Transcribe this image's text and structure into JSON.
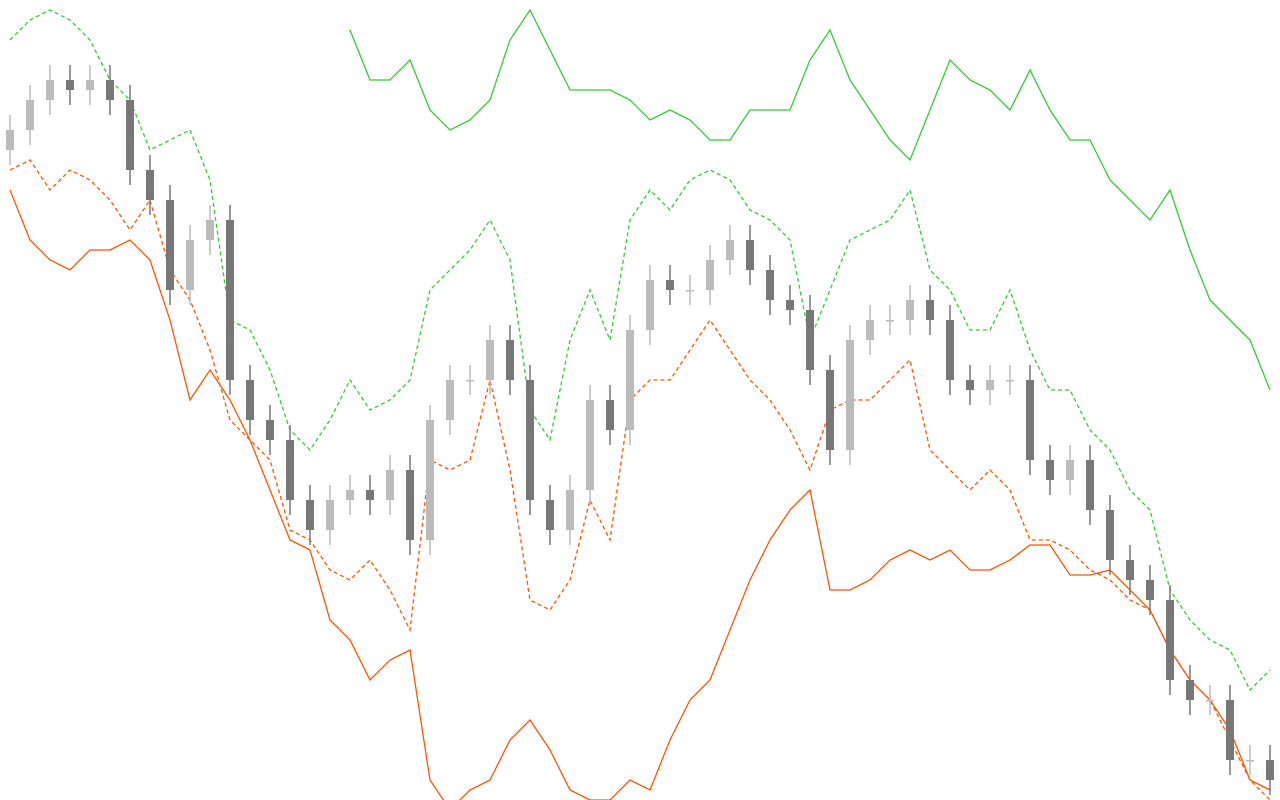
{
  "chart_data": {
    "type": "candlestick",
    "categories": [
      null,
      null,
      null,
      null,
      null,
      null,
      null,
      null,
      null,
      null,
      null,
      null,
      null,
      null,
      null,
      null,
      null,
      null,
      null,
      null,
      null,
      null,
      null,
      null,
      null,
      null,
      null,
      null,
      null,
      null,
      null,
      null,
      null,
      null,
      null,
      null,
      null,
      null,
      null,
      null,
      null,
      null,
      null,
      null,
      null,
      null,
      null,
      null,
      null,
      null,
      null,
      null,
      null,
      null,
      null,
      null,
      null,
      null,
      null,
      null,
      null,
      null,
      null,
      null
    ],
    "ylim": [
      0,
      800
    ],
    "up_color": "#bbbbbb",
    "down_color": "#777777",
    "open": [
      650,
      670,
      700,
      720,
      710,
      720,
      700,
      630,
      600,
      510,
      560,
      580,
      420,
      380,
      360,
      300,
      270,
      300,
      310,
      300,
      330,
      260,
      380,
      420,
      420,
      460,
      420,
      300,
      270,
      310,
      400,
      370,
      470,
      520,
      510,
      510,
      540,
      560,
      530,
      500,
      490,
      430,
      350,
      460,
      480,
      480,
      500,
      480,
      420,
      410,
      420,
      420,
      340,
      320,
      340,
      290,
      240,
      220,
      200,
      120,
      100,
      100,
      40,
      40
    ],
    "high": [
      685,
      715,
      735,
      735,
      735,
      735,
      715,
      645,
      615,
      575,
      595,
      595,
      435,
      395,
      375,
      315,
      315,
      325,
      325,
      345,
      345,
      395,
      435,
      435,
      475,
      475,
      435,
      315,
      325,
      415,
      415,
      485,
      535,
      535,
      525,
      555,
      575,
      575,
      545,
      515,
      505,
      445,
      475,
      495,
      495,
      515,
      515,
      495,
      435,
      435,
      435,
      435,
      355,
      355,
      355,
      305,
      255,
      235,
      215,
      135,
      115,
      115,
      55,
      55
    ],
    "low": [
      635,
      655,
      685,
      695,
      695,
      685,
      615,
      585,
      495,
      495,
      545,
      405,
      365,
      345,
      285,
      255,
      255,
      285,
      285,
      285,
      245,
      245,
      365,
      405,
      405,
      405,
      285,
      255,
      255,
      295,
      355,
      355,
      455,
      495,
      495,
      495,
      525,
      515,
      485,
      475,
      415,
      335,
      335,
      445,
      465,
      465,
      465,
      405,
      395,
      395,
      405,
      325,
      305,
      305,
      275,
      225,
      205,
      185,
      105,
      85,
      85,
      25,
      25,
      5
    ],
    "close": [
      670,
      700,
      720,
      710,
      720,
      700,
      630,
      600,
      510,
      560,
      580,
      420,
      380,
      360,
      300,
      270,
      300,
      310,
      300,
      330,
      260,
      380,
      420,
      420,
      460,
      420,
      300,
      270,
      310,
      400,
      370,
      470,
      520,
      510,
      510,
      540,
      560,
      530,
      500,
      490,
      430,
      350,
      460,
      480,
      480,
      500,
      480,
      420,
      410,
      420,
      420,
      340,
      320,
      340,
      290,
      240,
      220,
      200,
      120,
      100,
      100,
      40,
      40,
      20
    ],
    "lines": [
      {
        "color": "#33cc33",
        "dash": false,
        "values": [
          null,
          null,
          null,
          null,
          null,
          null,
          null,
          null,
          null,
          null,
          null,
          null,
          null,
          null,
          null,
          null,
          null,
          770,
          720,
          720,
          740,
          690,
          670,
          680,
          700,
          760,
          790,
          750,
          710,
          710,
          710,
          700,
          680,
          690,
          680,
          660,
          660,
          690,
          690,
          690,
          740,
          770,
          720,
          690,
          660,
          640,
          690,
          740,
          720,
          710,
          690,
          730,
          690,
          660,
          660,
          620,
          600,
          580,
          610,
          550,
          500,
          480,
          460,
          410
        ]
      },
      {
        "color": "#33cc33",
        "dash": true,
        "values": [
          760,
          780,
          790,
          780,
          760,
          720,
          700,
          650,
          660,
          670,
          620,
          480,
          470,
          430,
          370,
          350,
          380,
          420,
          390,
          400,
          420,
          510,
          530,
          550,
          580,
          540,
          390,
          360,
          460,
          510,
          460,
          580,
          610,
          590,
          620,
          630,
          620,
          590,
          580,
          560,
          460,
          510,
          560,
          570,
          580,
          610,
          530,
          510,
          470,
          470,
          510,
          450,
          410,
          410,
          370,
          350,
          310,
          290,
          210,
          180,
          160,
          150,
          110,
          130
        ]
      },
      {
        "color": "#ff5500",
        "dash": true,
        "values": [
          630,
          640,
          610,
          630,
          620,
          600,
          570,
          600,
          530,
          500,
          450,
          380,
          360,
          340,
          270,
          260,
          230,
          220,
          240,
          210,
          170,
          340,
          330,
          340,
          420,
          330,
          200,
          190,
          220,
          300,
          260,
          400,
          420,
          420,
          450,
          480,
          450,
          420,
          400,
          370,
          330,
          390,
          400,
          400,
          420,
          440,
          350,
          330,
          310,
          330,
          310,
          260,
          260,
          250,
          230,
          220,
          200,
          190,
          150,
          120,
          100,
          60,
          20,
          0
        ]
      },
      {
        "color": "#ff5500",
        "dash": false,
        "values": [
          610,
          560,
          540,
          530,
          550,
          550,
          560,
          540,
          480,
          400,
          430,
          400,
          360,
          310,
          260,
          250,
          180,
          160,
          120,
          140,
          150,
          20,
          -10,
          10,
          20,
          60,
          80,
          50,
          10,
          0,
          0,
          20,
          10,
          60,
          100,
          120,
          170,
          220,
          260,
          290,
          310,
          210,
          210,
          220,
          240,
          250,
          240,
          250,
          230,
          230,
          240,
          255,
          255,
          225,
          225,
          230,
          210,
          190,
          150,
          120,
          100,
          70,
          20,
          10
        ]
      }
    ]
  }
}
